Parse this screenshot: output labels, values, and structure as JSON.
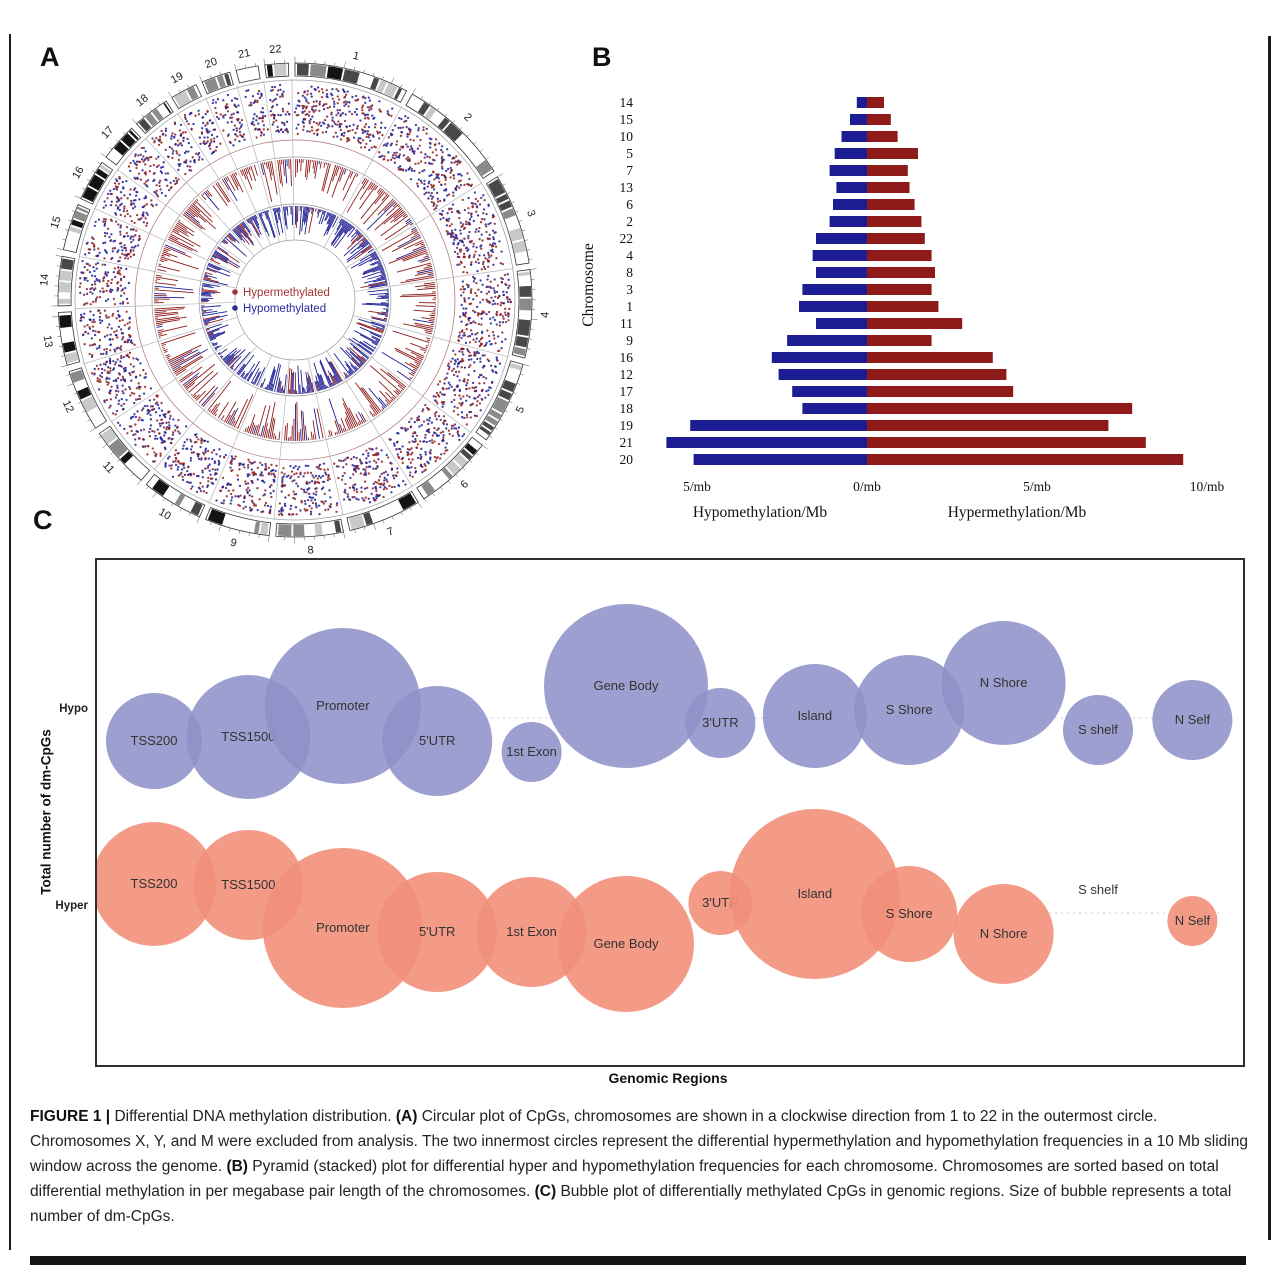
{
  "figure": {
    "panel_labels": {
      "a": "A",
      "b": "B",
      "c": "C"
    },
    "caption_segments": [
      {
        "text": "FIGURE 1 | ",
        "bold": true
      },
      {
        "text": "Differential DNA methylation distribution. ",
        "bold": false
      },
      {
        "text": "(A)",
        "bold": true
      },
      {
        "text": " Circular plot of CpGs, chromosomes are shown in a clockwise direction from 1 to 22 in the outermost circle. Chromosomes X, Y, and M were excluded from analysis. The two innermost circles represent the differential hypermethylation and hypomethylation frequencies in a 10 Mb sliding window across the genome. ",
        "bold": false
      },
      {
        "text": "(B)",
        "bold": true
      },
      {
        "text": " Pyramid (stacked) plot for differential hyper and hypomethylation frequencies for each chromosome. Chromosomes are sorted based on total differential methylation in per megabase pair length of the chromosomes. ",
        "bold": false
      },
      {
        "text": "(C)",
        "bold": true
      },
      {
        "text": " Bubble plot of differentially methylated CpGs in genomic regions. Size of bubble represents a total number of dm-CpGs.",
        "bold": false
      }
    ]
  },
  "colors": {
    "hyper": "#8e1a1a",
    "hypo": "#1d1d93",
    "bubble_hypo": "#8e92c8",
    "bubble_hyper": "#f2907a"
  },
  "chart_data": [
    {
      "panel": "A",
      "type": "scatter",
      "subtype": "circos",
      "description": "Circular genome plot of dm-CpGs; chromosomes 1-22 clockwise from top in outermost circle; outer ring is a scatter of hyper/hypomethylated CpGs; the two innermost circles are hypermethylation and hypomethylation frequency tracks (10 Mb sliding window).",
      "chromosomes": [
        "1",
        "2",
        "3",
        "4",
        "5",
        "6",
        "7",
        "8",
        "9",
        "10",
        "11",
        "12",
        "13",
        "14",
        "15",
        "16",
        "17",
        "18",
        "19",
        "20",
        "21",
        "22"
      ],
      "chromosome_sizes_mb": [
        249,
        243,
        198,
        191,
        181,
        171,
        159,
        146,
        141,
        134,
        135,
        134,
        115,
        107,
        102,
        90,
        83,
        80,
        59,
        63,
        48,
        51
      ],
      "legend": [
        {
          "label": "Hypermethylated",
          "color": "#a33434"
        },
        {
          "label": "Hypomethylated",
          "color": "#2a2a9c"
        }
      ]
    },
    {
      "panel": "B",
      "type": "bar",
      "subtype": "pyramid",
      "ylabel": "Chromosome",
      "categories": [
        "14",
        "15",
        "10",
        "5",
        "7",
        "13",
        "6",
        "2",
        "22",
        "4",
        "8",
        "3",
        "1",
        "11",
        "9",
        "16",
        "12",
        "17",
        "18",
        "19",
        "21",
        "20"
      ],
      "series": [
        {
          "name": "Hypomethylation/Mb",
          "direction": "left",
          "color": "#1d1d93",
          "values": [
            0.3,
            0.5,
            0.75,
            0.95,
            1.1,
            0.9,
            1.0,
            1.1,
            1.5,
            1.6,
            1.5,
            1.9,
            2.0,
            1.5,
            2.35,
            2.8,
            2.6,
            2.2,
            1.9,
            5.2,
            5.9,
            5.1
          ]
        },
        {
          "name": "Hypermethylation/Mb",
          "direction": "right",
          "color": "#8e1a1a",
          "values": [
            0.5,
            0.7,
            0.9,
            1.5,
            1.2,
            1.25,
            1.4,
            1.6,
            1.7,
            1.9,
            2.0,
            1.9,
            2.1,
            2.8,
            1.9,
            3.7,
            4.1,
            4.3,
            7.8,
            7.1,
            8.2,
            9.3
          ]
        }
      ],
      "x_ticks": [
        "5/mb",
        "0/mb",
        "5/mb",
        "10/mb"
      ],
      "x_tick_values": [
        -5,
        0,
        5,
        10
      ],
      "xlim": [
        -6.5,
        10.8
      ],
      "axis_caption_left": "Hypomethylation/Mb",
      "axis_caption_right": "Hypermethylation/Mb",
      "grid": false,
      "legend_position": "none"
    },
    {
      "panel": "C",
      "type": "scatter",
      "subtype": "bubble",
      "xlabel": "Genomic Regions",
      "ylabel": "Total number of dm-CpGs",
      "rows": [
        "Hypo",
        "Hyper"
      ],
      "regions": [
        "TSS200",
        "TSS1500",
        "Promoter",
        "5'UTR",
        "1st Exon",
        "Gene Body",
        "3'UTR",
        "Island",
        "S Shore",
        "N Shore",
        "S shelf",
        "N Self"
      ],
      "hypo": [
        {
          "r": 48,
          "dy": 23
        },
        {
          "r": 62,
          "dy": 19
        },
        {
          "r": 78,
          "dy": -12
        },
        {
          "r": 55,
          "dy": 23
        },
        {
          "r": 30,
          "dy": 34
        },
        {
          "r": 82,
          "dy": -32
        },
        {
          "r": 35,
          "dy": 5
        },
        {
          "r": 52,
          "dy": -2
        },
        {
          "r": 55,
          "dy": -8
        },
        {
          "r": 62,
          "dy": -35
        },
        {
          "r": 35,
          "dy": 12
        },
        {
          "r": 40,
          "dy": 2
        }
      ],
      "hyper": [
        {
          "r": 62,
          "dy": -29
        },
        {
          "r": 55,
          "dy": -28
        },
        {
          "r": 80,
          "dy": 15
        },
        {
          "r": 60,
          "dy": 19
        },
        {
          "r": 55,
          "dy": 19
        },
        {
          "r": 68,
          "dy": 31
        },
        {
          "r": 32,
          "dy": -10
        },
        {
          "r": 85,
          "dy": -19
        },
        {
          "r": 48,
          "dy": 1
        },
        {
          "r": 50,
          "dy": 21
        },
        {
          "r": 0,
          "dy": -23
        },
        {
          "r": 25,
          "dy": 8
        }
      ],
      "size_note": "Size of bubble represents total number of dm-CpGs"
    }
  ]
}
